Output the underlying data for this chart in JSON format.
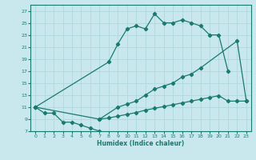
{
  "xlabel": "Humidex (Indice chaleur)",
  "xlim": [
    -0.5,
    23.5
  ],
  "ylim": [
    7,
    28
  ],
  "yticks": [
    7,
    9,
    11,
    13,
    15,
    17,
    19,
    21,
    23,
    25,
    27
  ],
  "xticks": [
    0,
    1,
    2,
    3,
    4,
    5,
    6,
    7,
    8,
    9,
    10,
    11,
    12,
    13,
    14,
    15,
    16,
    17,
    18,
    19,
    20,
    21,
    22,
    23
  ],
  "bg_color": "#c8e8ee",
  "line_color": "#1a7a6e",
  "grid_color": "#b0d8de",
  "curve1_x": [
    0,
    1,
    2,
    3,
    4,
    5,
    6,
    7
  ],
  "curve1_y": [
    11,
    10,
    10,
    8.5,
    8.5,
    8,
    7.5,
    7
  ],
  "curve2_x": [
    0,
    7,
    9,
    10,
    11,
    12,
    13,
    14,
    15,
    16,
    17,
    18,
    22,
    23
  ],
  "curve2_y": [
    11,
    9,
    11,
    11.5,
    12,
    13,
    14,
    14.5,
    15,
    16,
    16.5,
    17.5,
    22,
    12
  ],
  "curve3_x": [
    0,
    8,
    9,
    10,
    11,
    12,
    13,
    14,
    15,
    16,
    17,
    18,
    19,
    20,
    21
  ],
  "curve3_y": [
    11,
    18.5,
    21.5,
    24,
    24.5,
    24,
    26.5,
    25,
    25,
    25.5,
    25,
    24.5,
    23,
    23,
    17
  ],
  "curve4_x": [
    7,
    8,
    9,
    10,
    11,
    12,
    13,
    14,
    15,
    16,
    17,
    18,
    19,
    20,
    21,
    22,
    23
  ],
  "curve4_y": [
    9,
    9.2,
    9.5,
    9.8,
    10.1,
    10.5,
    10.8,
    11.1,
    11.4,
    11.7,
    12,
    12.3,
    12.6,
    12.9,
    12,
    12,
    12
  ]
}
